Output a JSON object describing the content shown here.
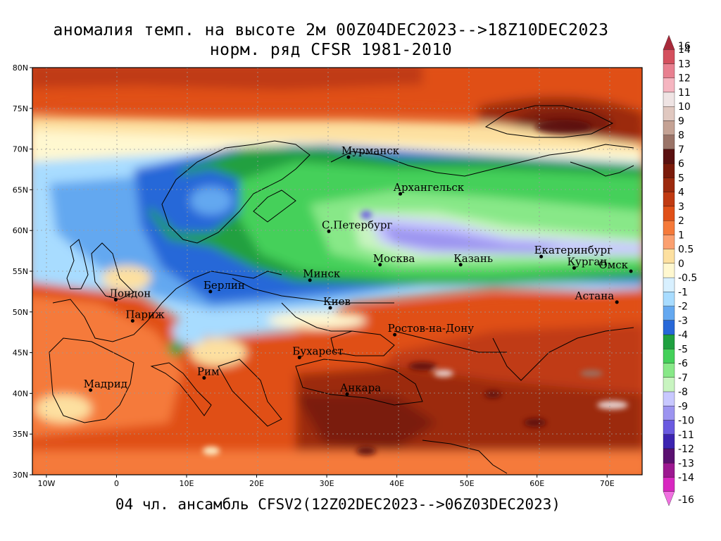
{
  "title_line1": "аномалия темп. на высоте 2м 00Z04DEC2023-->18Z10DEC2023",
  "title_line2": "норм. ряд CFSR 1981-2010",
  "footer": "04 чл. ансамбль CFSV2(12Z02DEC2023-->06Z03DEC2023)",
  "lon_labels": [
    "10W",
    "0",
    "10E",
    "20E",
    "30E",
    "40E",
    "50E",
    "60E",
    "70E"
  ],
  "lon_values": [
    -10,
    0,
    10,
    20,
    30,
    40,
    50,
    60,
    70
  ],
  "lat_labels": [
    "30N",
    "35N",
    "40N",
    "45N",
    "50N",
    "55N",
    "60N",
    "65N",
    "70N",
    "75N",
    "80N"
  ],
  "lat_values": [
    30,
    35,
    40,
    45,
    50,
    55,
    60,
    65,
    70,
    75,
    80
  ],
  "map_extent": {
    "lon_min": -12,
    "lon_max": 75,
    "lat_min": 30,
    "lat_max": 80
  },
  "cities": [
    {
      "name": "Мурманск",
      "lon": 33.1,
      "lat": 69.0
    },
    {
      "name": "Архангельск",
      "lon": 40.5,
      "lat": 64.5
    },
    {
      "name": "С.Петербург",
      "lon": 30.3,
      "lat": 59.9
    },
    {
      "name": "Москва",
      "lon": 37.6,
      "lat": 55.8
    },
    {
      "name": "Казань",
      "lon": 49.1,
      "lat": 55.8
    },
    {
      "name": "Екатеринбург",
      "lon": 60.6,
      "lat": 56.8
    },
    {
      "name": "Курган",
      "lon": 65.3,
      "lat": 55.4
    },
    {
      "name": "Омск",
      "lon": 73.4,
      "lat": 55.0
    },
    {
      "name": "Астана",
      "lon": 71.4,
      "lat": 51.2
    },
    {
      "name": "Минск",
      "lon": 27.6,
      "lat": 53.9
    },
    {
      "name": "Берлин",
      "lon": 13.4,
      "lat": 52.5
    },
    {
      "name": "Лондон",
      "lon": -0.1,
      "lat": 51.5
    },
    {
      "name": "Париж",
      "lon": 2.3,
      "lat": 48.9
    },
    {
      "name": "Киев",
      "lon": 30.5,
      "lat": 50.5
    },
    {
      "name": "Ростов-на-Дону",
      "lon": 39.7,
      "lat": 47.2
    },
    {
      "name": "Бухарест",
      "lon": 26.1,
      "lat": 44.4
    },
    {
      "name": "Рим",
      "lon": 12.5,
      "lat": 41.9
    },
    {
      "name": "Мадрид",
      "lon": -3.7,
      "lat": 40.4
    },
    {
      "name": "Анкара",
      "lon": 32.9,
      "lat": 39.9
    }
  ],
  "colorbar": {
    "labels": [
      "16",
      "14",
      "13",
      "12",
      "11",
      "10",
      "9",
      "8",
      "7",
      "6",
      "5",
      "4",
      "3",
      "2",
      "1",
      "0.5",
      "0",
      "-0.5",
      "-1",
      "-2",
      "-3",
      "-4",
      "-5",
      "-6",
      "-7",
      "-8",
      "-9",
      "-10",
      "-11",
      "-12",
      "-13",
      "-14",
      "-16"
    ],
    "colors": [
      "#a82a3a",
      "#d4505e",
      "#e88090",
      "#f5b5c0",
      "#efe4e4",
      "#e0c8c0",
      "#c4a294",
      "#9a7468",
      "#5a1010",
      "#7a1a0a",
      "#9c2a0e",
      "#c03a12",
      "#e05018",
      "#f57a3a",
      "#fba070",
      "#fde0a0",
      "#fff8d0",
      "#d8f0ff",
      "#a8dcff",
      "#64a8f0",
      "#2868d8",
      "#20a040",
      "#44d05a",
      "#88e888",
      "#c8f4c0",
      "#c8c8ff",
      "#9c94f0",
      "#6a5ae0",
      "#3c24b0",
      "#5a1070",
      "#9c1890",
      "#d828c0",
      "#f070e0"
    ]
  }
}
